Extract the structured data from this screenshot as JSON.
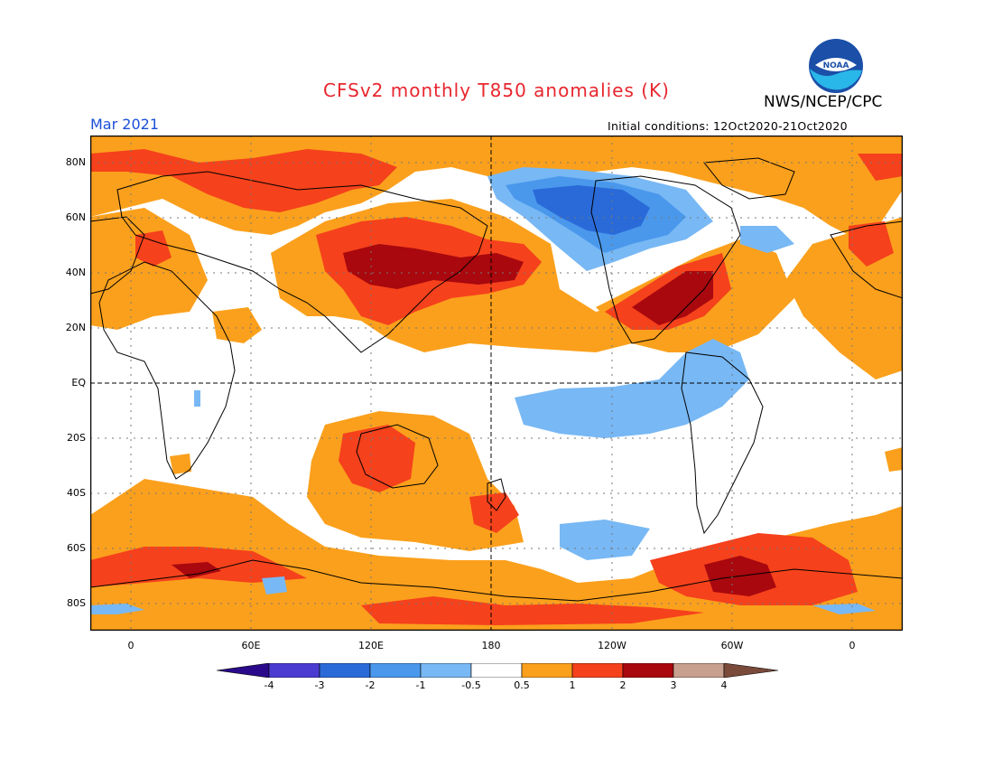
{
  "header": {
    "title": "CFSv2 monthly T850 anomalies (K)",
    "org": "NWS/NCEP/CPC",
    "logo_text": "NOAA",
    "month": "Mar 2021",
    "initial_conditions": "Initial conditions: 12Oct2020-21Oct2020"
  },
  "axes": {
    "lat_labels": [
      "80N",
      "60N",
      "40N",
      "20N",
      "EQ",
      "20S",
      "40S",
      "60S",
      "80S"
    ],
    "lon_labels": [
      "0",
      "60E",
      "120E",
      "180",
      "120W",
      "60W",
      "0"
    ]
  },
  "colorbar": {
    "labels": [
      "-4",
      "-3",
      "-2",
      "-1",
      "-0.5",
      "0.5",
      "1",
      "2",
      "3",
      "4"
    ],
    "colors": [
      "#2a0a8a",
      "#4b3bd0",
      "#2a6ad8",
      "#4a98ec",
      "#78b8f4",
      "#ffffff",
      "#fba01c",
      "#f5411c",
      "#a8080e",
      "#c8a090",
      "#7a4a3a"
    ]
  },
  "palette": {
    "warm1": "#fba01c",
    "warm2": "#f5411c",
    "warm3": "#a8080e",
    "warm4": "#c8a090",
    "cool1": "#78b8f4",
    "cool2": "#4a98ec",
    "cool3": "#2a6ad8",
    "cool4": "#4b3bd0"
  }
}
